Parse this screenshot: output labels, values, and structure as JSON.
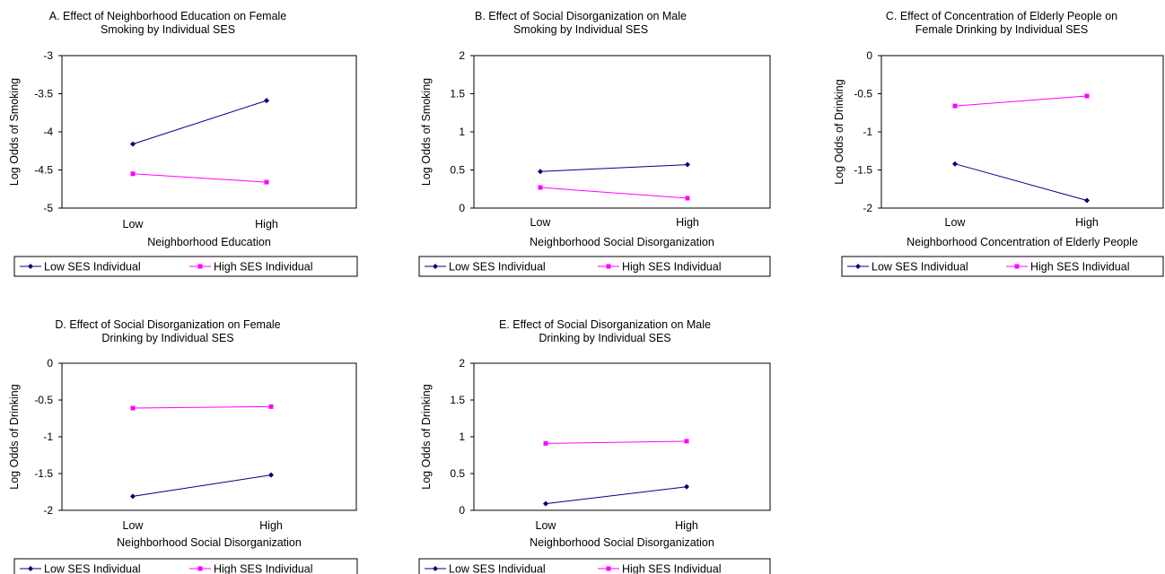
{
  "legend_labels": {
    "low": "Low SES Individual",
    "high": "High SES Individual"
  },
  "colors": {
    "low": "#000080",
    "high": "#ff00ff",
    "frame": "#000000"
  },
  "chart_data": [
    {
      "type": "line",
      "title": [
        "A. Effect of Neighborhood Education on Female",
        "Smoking by Individual SES"
      ],
      "xlabel": "Neighborhood Education",
      "ylabel": "Log Odds of Smoking",
      "categories": [
        "Low",
        "High"
      ],
      "ylim": [
        -5,
        -3
      ],
      "yticks": [
        -5,
        -4.5,
        -4,
        -3.5,
        -3
      ],
      "yticklabels": [
        "-5",
        "-4.5",
        "-4",
        "-3.5",
        "-3"
      ],
      "series": [
        {
          "name": "Low SES Individual",
          "values": [
            -4.16,
            -3.59
          ]
        },
        {
          "name": "High SES Individual",
          "values": [
            -4.55,
            -4.66
          ]
        }
      ]
    },
    {
      "type": "line",
      "title": [
        "B. Effect of Social Disorganization on Male",
        "Smoking by Individual SES"
      ],
      "xlabel": "Neighborhood Social Disorganization",
      "ylabel": "Log Odds of Smoking",
      "categories": [
        "Low",
        "High"
      ],
      "ylim": [
        0,
        2
      ],
      "yticks": [
        0,
        0.5,
        1,
        1.5,
        2
      ],
      "yticklabels": [
        "0",
        "0.5",
        "1",
        "1.5",
        "2"
      ],
      "series": [
        {
          "name": "Low SES Individual",
          "values": [
            0.48,
            0.57
          ]
        },
        {
          "name": "High SES Individual",
          "values": [
            0.27,
            0.13
          ]
        }
      ]
    },
    {
      "type": "line",
      "title": [
        "C. Effect of Concentration of Elderly People on",
        "Female Drinking by Individual SES"
      ],
      "xlabel": "Neighborhood Concentration of Elderly People",
      "ylabel": "Log Odds of Drinking",
      "categories": [
        "Low",
        "High"
      ],
      "ylim": [
        -2,
        0
      ],
      "yticks": [
        -2,
        -1.5,
        -1,
        -0.5,
        0
      ],
      "yticklabels": [
        "-2",
        "-1.5",
        "-1",
        "-0.5",
        "0"
      ],
      "series": [
        {
          "name": "Low SES Individual",
          "values": [
            -1.42,
            -1.9
          ]
        },
        {
          "name": "High SES Individual",
          "values": [
            -0.66,
            -0.53
          ]
        }
      ]
    },
    {
      "type": "line",
      "title": [
        "D. Effect of Social Disorganization on Female",
        "Drinking by Individual SES"
      ],
      "xlabel": "Neighborhood Social Disorganization",
      "ylabel": "Log Odds of Drinking",
      "categories": [
        "Low",
        "High"
      ],
      "ylim": [
        -2,
        0
      ],
      "yticks": [
        -2,
        -1.5,
        -1,
        -0.5,
        0
      ],
      "yticklabels": [
        "-2",
        "-1.5",
        "-1",
        "-0.5",
        "0"
      ],
      "series": [
        {
          "name": "Low SES Individual",
          "values": [
            -1.81,
            -1.52
          ]
        },
        {
          "name": "High SES Individual",
          "values": [
            -0.61,
            -0.59
          ]
        }
      ]
    },
    {
      "type": "line",
      "title": [
        "E. Effect of Social Disorganization on Male",
        "Drinking by Individual SES"
      ],
      "xlabel": "Neighborhood Social Disorganization",
      "ylabel": "Log Odds of Drinking",
      "categories": [
        "Low",
        "High"
      ],
      "ylim": [
        0,
        2
      ],
      "yticks": [
        0,
        0.5,
        1,
        1.5,
        2
      ],
      "yticklabels": [
        "0",
        "0.5",
        "1",
        "1.5",
        "2"
      ],
      "series": [
        {
          "name": "Low SES Individual",
          "values": [
            0.09,
            0.32
          ]
        },
        {
          "name": "High SES Individual",
          "values": [
            0.91,
            0.94
          ]
        }
      ]
    }
  ]
}
